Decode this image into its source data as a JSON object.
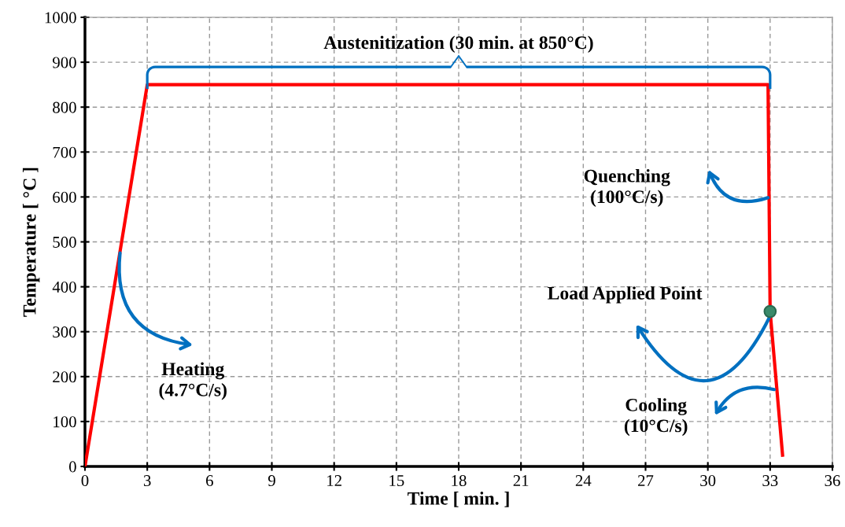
{
  "chart_data": {
    "type": "line",
    "xlabel": "Time [ min. ]",
    "ylabel": "Temperature [ °C ]",
    "series": [
      {
        "color": "#ff0000",
        "x": [
          0,
          3,
          32.9,
          33.0,
          33.6
        ],
        "values": [
          0,
          850,
          850,
          345,
          25
        ]
      },
      {
        "type": "scatter",
        "color": "#3a8a6a",
        "x": [
          33.0
        ],
        "values": [
          345
        ]
      }
    ],
    "annotations": [
      "Austenitization (30 min. at 850°C)",
      "Quenching\n(100°C/s)",
      {
        "text": "Load Applied Point",
        "x": 33.0,
        "y": 345
      },
      {
        "text": "Heating\n(4.7°C/s)",
        "x": 1.7,
        "y": 480
      },
      "Cooling\n(10°C/s)"
    ],
    "xlim": [
      0,
      36
    ],
    "xticks": [
      0,
      3,
      6,
      9,
      12,
      15,
      18,
      21,
      24,
      27,
      30,
      33,
      36
    ],
    "ylim": [
      0,
      1000
    ],
    "yticks": [
      0,
      100,
      200,
      300,
      400,
      500,
      600,
      700,
      800,
      900,
      1000
    ],
    "grid": true
  }
}
